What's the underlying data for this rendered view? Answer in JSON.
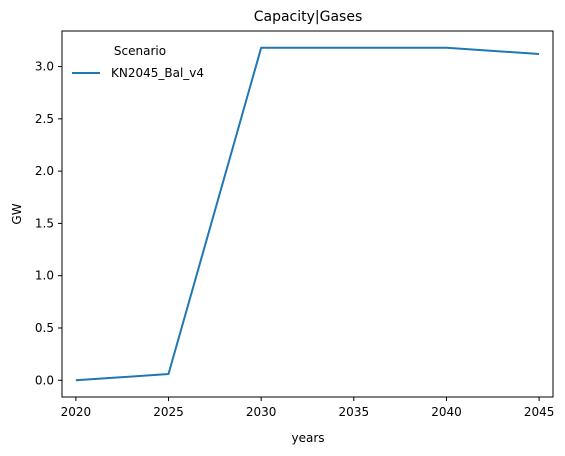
{
  "chart_data": {
    "type": "line",
    "title": "Capacity|Gases",
    "xlabel": "years",
    "ylabel": "GW",
    "x": [
      2020,
      2025,
      2030,
      2035,
      2040,
      2045
    ],
    "xticks": [
      "2020",
      "2025",
      "2030",
      "2035",
      "2040",
      "2045"
    ],
    "yticks": [
      "0.0",
      "0.5",
      "1.0",
      "1.5",
      "2.0",
      "2.5",
      "3.0"
    ],
    "xlim": [
      2019.25,
      2045.75
    ],
    "ylim": [
      -0.16,
      3.34
    ],
    "legend": {
      "title": "Scenario",
      "placement": "top-left"
    },
    "series": [
      {
        "name": "KN2045_Bal_v4",
        "color": "#1f77b4",
        "x": [
          2020,
          2025,
          2030,
          2040,
          2045
        ],
        "values": [
          0.0,
          0.06,
          3.18,
          3.18,
          3.12
        ]
      }
    ],
    "grid": false
  }
}
